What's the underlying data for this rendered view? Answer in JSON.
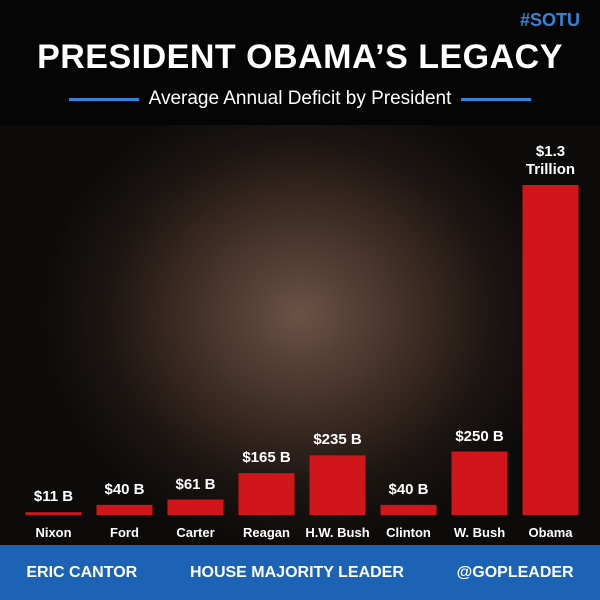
{
  "chart_data": {
    "type": "bar",
    "hashtag": "#SOTU",
    "title": "PRESIDENT OBAMA’S LEGACY",
    "subtitle": "Average Annual Deficit by President",
    "categories": [
      "Nixon",
      "Ford",
      "Carter",
      "Reagan",
      "H.W. Bush",
      "Clinton",
      "W. Bush",
      "Obama"
    ],
    "values": [
      11,
      40,
      61,
      165,
      235,
      40,
      250,
      1300
    ],
    "value_labels": [
      "$11 B",
      "$40 B",
      "$61 B",
      "$165 B",
      "$235 B",
      "$40 B",
      "$250 B",
      "$1.3 Trillion"
    ],
    "color": "#d0161b",
    "footer": [
      "ERIC CANTOR",
      "HOUSE MAJORITY LEADER",
      "@GOPLEADER"
    ]
  }
}
